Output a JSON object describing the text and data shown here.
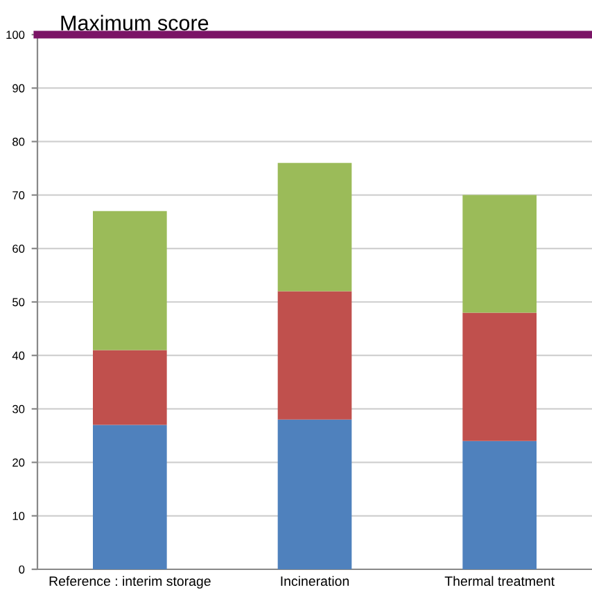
{
  "chart_data": {
    "type": "bar",
    "stacked": true,
    "categories": [
      "Reference : interim storage",
      "Incineration",
      "Thermal treatment"
    ],
    "series": [
      {
        "color": "#4f81bd",
        "values": [
          27,
          28,
          24
        ]
      },
      {
        "color": "#c0504d",
        "values": [
          14,
          24,
          24
        ]
      },
      {
        "color": "#9bbb59",
        "values": [
          26,
          24,
          22
        ]
      }
    ],
    "ylim": [
      0,
      100
    ],
    "yticks": [
      0,
      10,
      20,
      30,
      40,
      50,
      60,
      70,
      80,
      90,
      100
    ],
    "grid": "y",
    "legend": false,
    "ref_lines": [
      {
        "axis": "y",
        "value": 100,
        "label": "Maximum score",
        "color": "#7b1466"
      }
    ]
  }
}
